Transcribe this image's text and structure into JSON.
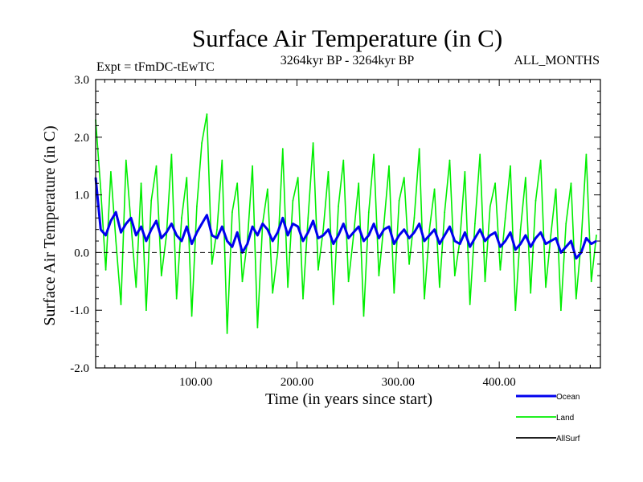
{
  "chart_data": {
    "type": "line",
    "title": "Surface Air Temperature (in C)",
    "subtitle_left": "Expt = tFmDC-tEwTC",
    "subtitle_center": "3264kyr BP - 3264kyr BP",
    "subtitle_right": "ALL_MONTHS",
    "xlabel": "Time (in years since start)",
    "ylabel": "Surface Air Temperature (in C)",
    "xlim": [
      1,
      500
    ],
    "ylim": [
      -2.0,
      3.0
    ],
    "x_ticks": [
      {
        "value": 100,
        "label": "100.00"
      },
      {
        "value": 200,
        "label": "200.00"
      },
      {
        "value": 300,
        "label": "300.00"
      },
      {
        "value": 400,
        "label": "400.00"
      }
    ],
    "y_ticks": [
      {
        "value": 3.0,
        "label": "3.0"
      },
      {
        "value": 2.0,
        "label": "2.0"
      },
      {
        "value": 1.0,
        "label": "1.0"
      },
      {
        "value": 0.0,
        "label": "0.0"
      },
      {
        "value": -1.0,
        "label": "-1.0"
      },
      {
        "value": -2.0,
        "label": "-2.0"
      }
    ],
    "reference_line": 0.0,
    "series": [
      {
        "name": "Land",
        "color": "#00ee00",
        "x_start": 1,
        "x_step": 5,
        "values": [
          2.3,
          1.1,
          -0.3,
          1.4,
          0.2,
          -0.9,
          1.6,
          0.5,
          -0.6,
          1.2,
          -1.0,
          0.9,
          1.5,
          -0.4,
          0.3,
          1.7,
          -0.8,
          0.6,
          1.3,
          -1.1,
          0.8,
          1.9,
          2.4,
          -0.2,
          0.4,
          1.6,
          -1.4,
          0.7,
          1.2,
          -0.5,
          0.2,
          1.5,
          -1.3,
          0.5,
          1.1,
          -0.7,
          0.0,
          1.8,
          -0.6,
          0.9,
          1.3,
          -0.8,
          0.6,
          1.9,
          -0.3,
          0.4,
          1.4,
          -0.9,
          0.8,
          1.6,
          -0.5,
          0.3,
          1.2,
          -1.1,
          0.7,
          1.7,
          -0.4,
          0.5,
          1.5,
          -0.7,
          0.9,
          1.3,
          -0.2,
          0.6,
          1.8,
          -0.8,
          0.4,
          1.1,
          -0.6,
          0.7,
          1.6,
          -0.4,
          0.2,
          1.4,
          -0.9,
          0.5,
          1.7,
          -0.5,
          0.8,
          1.2,
          -0.3,
          0.6,
          1.5,
          -1.0,
          0.4,
          1.3,
          -0.7,
          0.9,
          1.6,
          -0.6,
          0.3,
          1.1,
          -1.0,
          0.5,
          1.2,
          -0.8,
          0.2,
          1.7,
          -0.5,
          0.3
        ]
      },
      {
        "name": "Ocean",
        "color": "#0000ee",
        "x_start": 1,
        "x_step": 5,
        "values": [
          1.3,
          0.4,
          0.3,
          0.55,
          0.7,
          0.35,
          0.5,
          0.6,
          0.3,
          0.45,
          0.2,
          0.4,
          0.55,
          0.25,
          0.35,
          0.5,
          0.3,
          0.2,
          0.45,
          0.15,
          0.35,
          0.5,
          0.65,
          0.3,
          0.25,
          0.45,
          0.2,
          0.1,
          0.35,
          0.0,
          0.15,
          0.45,
          0.3,
          0.5,
          0.4,
          0.2,
          0.35,
          0.6,
          0.3,
          0.5,
          0.45,
          0.2,
          0.35,
          0.55,
          0.25,
          0.3,
          0.4,
          0.15,
          0.3,
          0.5,
          0.25,
          0.35,
          0.45,
          0.2,
          0.3,
          0.5,
          0.25,
          0.4,
          0.45,
          0.15,
          0.3,
          0.4,
          0.25,
          0.35,
          0.5,
          0.2,
          0.3,
          0.4,
          0.15,
          0.3,
          0.45,
          0.2,
          0.15,
          0.35,
          0.1,
          0.25,
          0.4,
          0.2,
          0.3,
          0.35,
          0.1,
          0.2,
          0.35,
          0.05,
          0.15,
          0.3,
          0.1,
          0.25,
          0.35,
          0.15,
          0.2,
          0.25,
          0.0,
          0.1,
          0.2,
          -0.1,
          0.0,
          0.25,
          0.15,
          0.2
        ]
      },
      {
        "name": "AllSurf",
        "color": "#000000",
        "values": []
      }
    ],
    "legend": [
      {
        "name": "Ocean",
        "color": "#0000ee"
      },
      {
        "name": "Land",
        "color": "#00ee00"
      },
      {
        "name": "AllSurf",
        "color": "#000000"
      }
    ],
    "legend_position": "bottom-right"
  }
}
